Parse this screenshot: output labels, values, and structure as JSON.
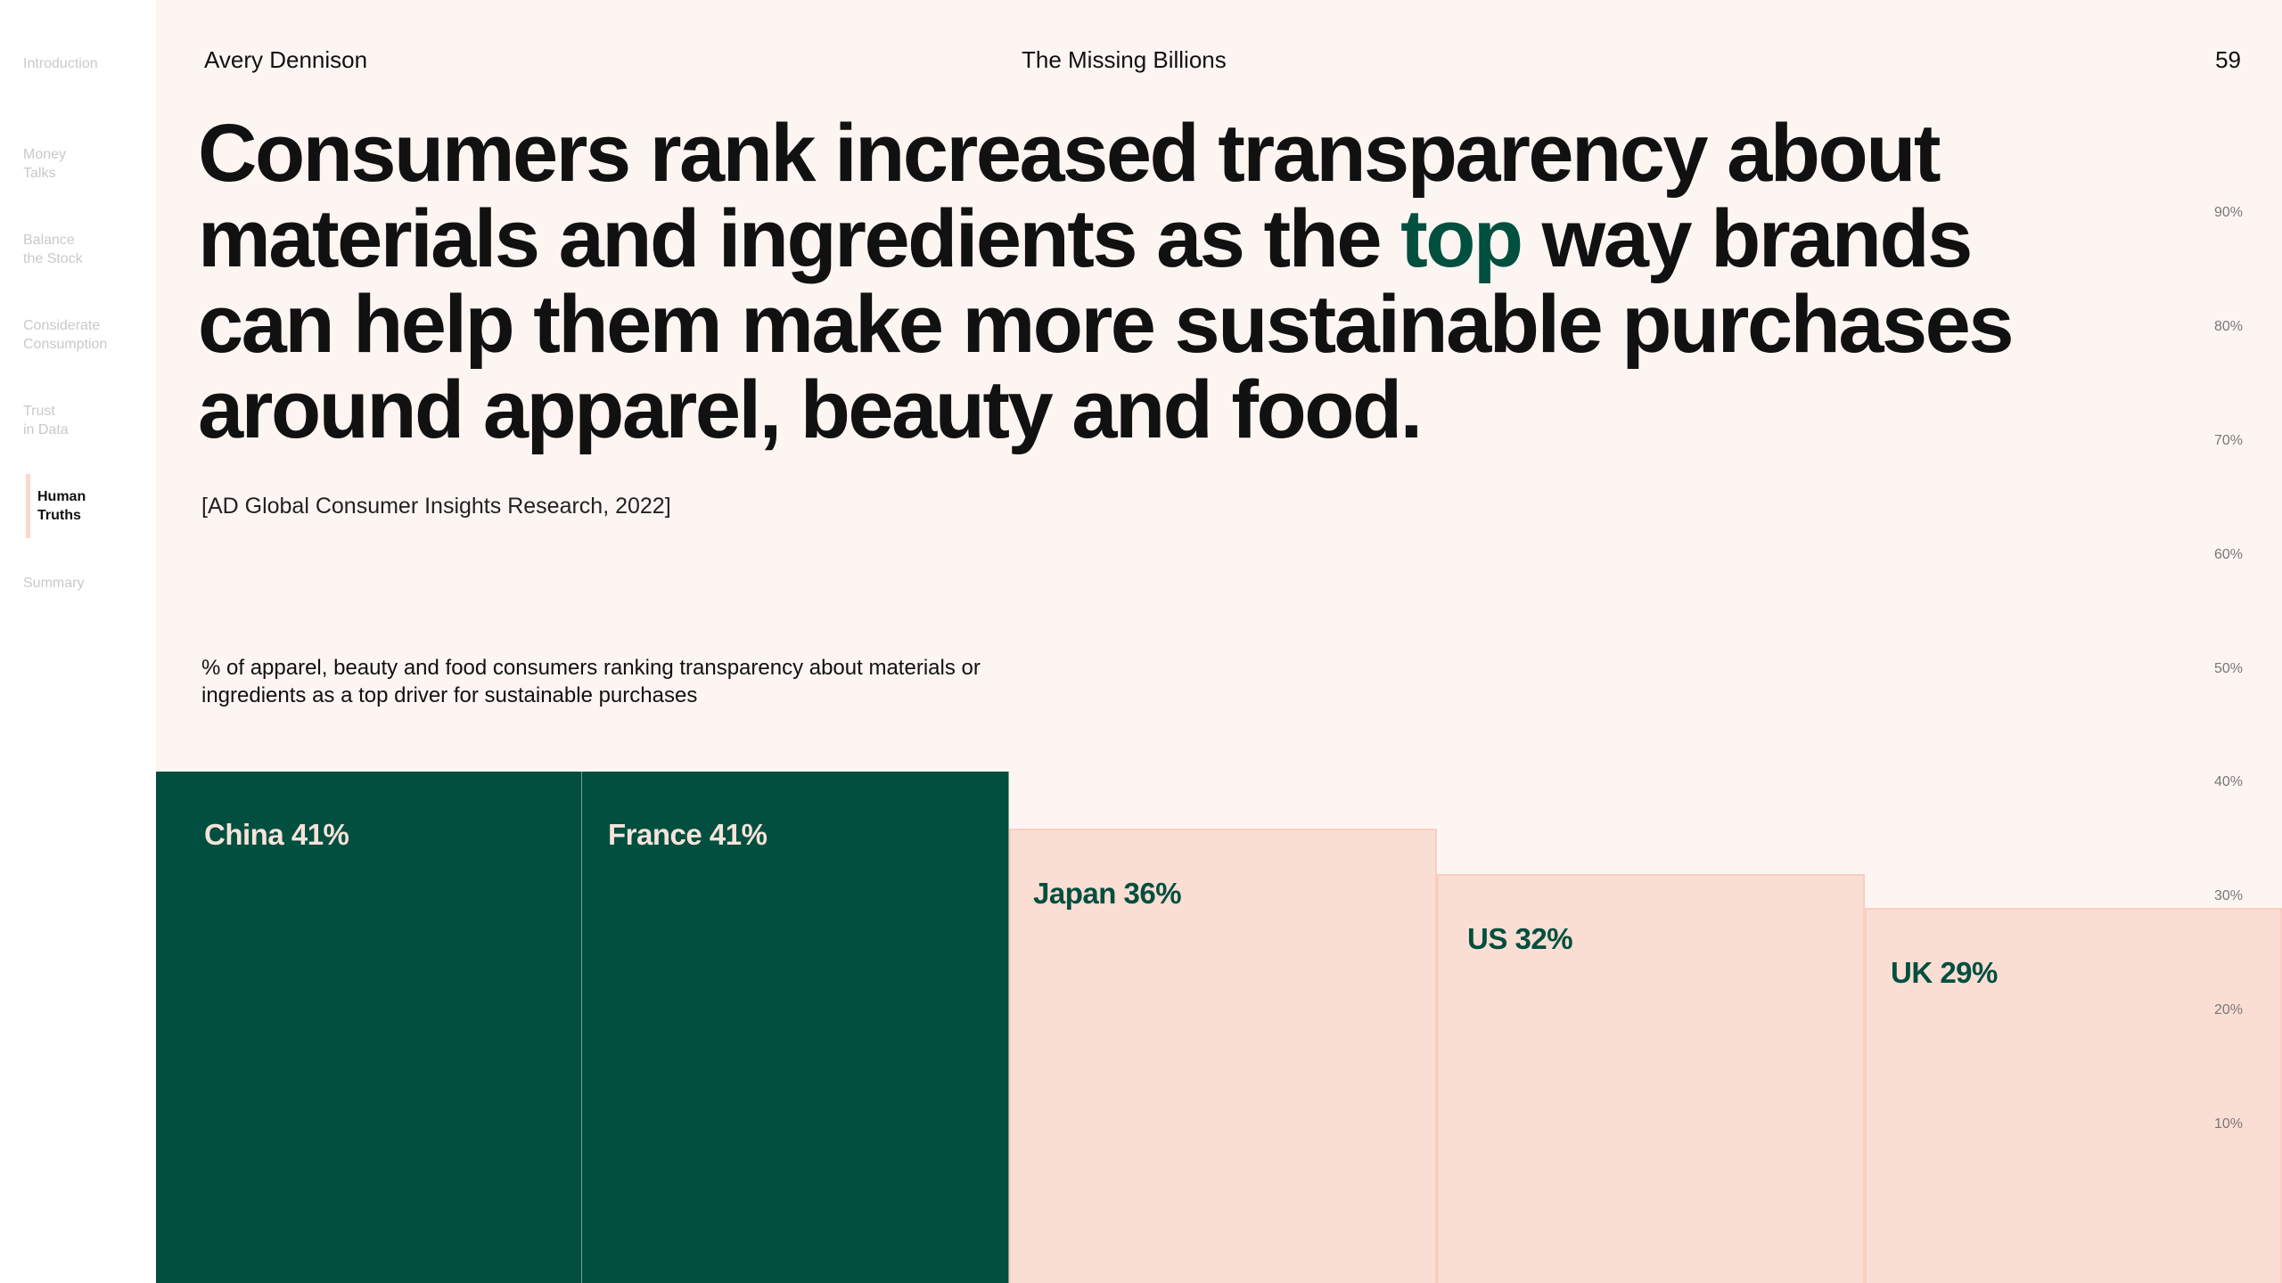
{
  "sidebar": {
    "items": [
      {
        "label": "Introduction",
        "active": false
      },
      {
        "label": "Money\nTalks",
        "active": false
      },
      {
        "label": "Balance\nthe Stock",
        "active": false
      },
      {
        "label": "Considerate\nConsumption",
        "active": false
      },
      {
        "label": "Trust\nin Data",
        "active": false
      },
      {
        "label": "Human\nTruths",
        "active": true
      },
      {
        "label": "Summary",
        "active": false
      }
    ]
  },
  "header": {
    "brand": "Avery Dennison",
    "report": "The Missing Billions",
    "page_number": "59"
  },
  "headline": {
    "before": "Consumers rank increased transparency about materials and ingredients as the ",
    "highlight": "top",
    "after": " way brands can help them make more sustainable purchases around apparel, beauty and food."
  },
  "citation": "[AD Global Consumer Insights Research, 2022]",
  "colors": {
    "dark_green": "#004f3f",
    "pink": "#fbded3",
    "background": "#fdf5f2"
  },
  "chart_data": {
    "type": "bar",
    "title": "% of apparel, beauty and food consumers ranking transparency about materials or ingredients as a top driver for sustainable purchases",
    "categories": [
      "China",
      "France",
      "Japan",
      "US",
      "UK"
    ],
    "values": [
      41,
      41,
      36,
      32,
      29
    ],
    "labels": [
      "China 41%",
      "France 41%",
      "Japan 36%",
      "US 32%",
      "UK 29%"
    ],
    "highlighted": [
      true,
      true,
      false,
      false,
      false
    ],
    "ylim": [
      0,
      90
    ],
    "yticks": [
      "90%",
      "80%",
      "70%",
      "60%",
      "50%",
      "40%",
      "30%",
      "20%",
      "10%"
    ],
    "ytick_values": [
      90,
      80,
      70,
      60,
      50,
      40,
      30,
      20,
      10
    ],
    "axis_position": "right",
    "grid": false
  }
}
